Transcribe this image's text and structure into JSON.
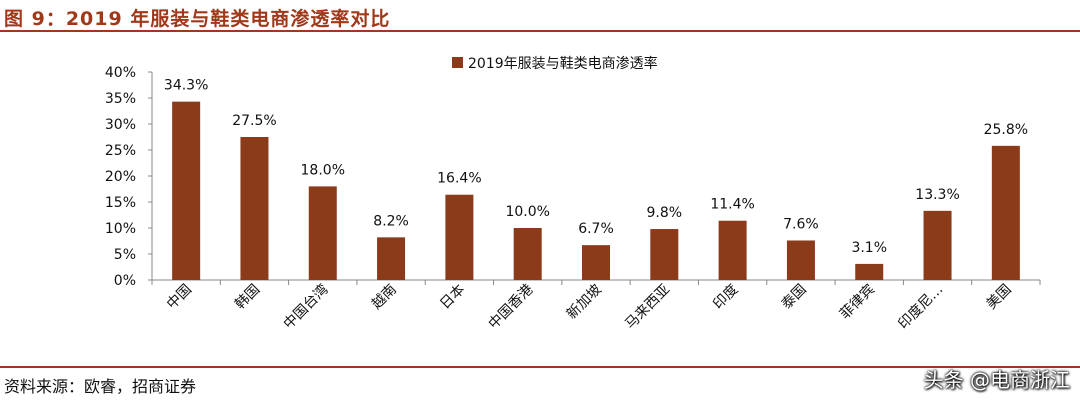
{
  "figure": {
    "title": "图 9：2019 年服装与鞋类电商渗透率对比",
    "source": "资料来源：欧睿，招商证券",
    "watermark": "头条 @电商浙江"
  },
  "chart_data": {
    "type": "bar",
    "categories": [
      "中国",
      "韩国",
      "中国台湾",
      "越南",
      "日本",
      "中国香港",
      "新加坡",
      "马来西亚",
      "印度",
      "泰国",
      "菲律宾",
      "印度尼…",
      "美国"
    ],
    "series": [
      {
        "name": "2019年服装与鞋类电商渗透率",
        "values": [
          34.3,
          27.5,
          18.0,
          8.2,
          16.4,
          10.0,
          6.7,
          9.8,
          11.4,
          7.6,
          3.1,
          13.3,
          25.8
        ],
        "labels": [
          "34.3%",
          "27.5%",
          "18.0%",
          "8.2%",
          "16.4%",
          "10.0%",
          "6.7%",
          "9.8%",
          "11.4%",
          "7.6%",
          "3.1%",
          "13.3%",
          "25.8%"
        ],
        "color": "#8b3a1a"
      }
    ],
    "y_ticks": [
      "0%",
      "5%",
      "10%",
      "15%",
      "20%",
      "25%",
      "30%",
      "35%",
      "40%"
    ],
    "ylim": [
      0,
      40
    ],
    "grid": false,
    "legend_position": "top-center"
  }
}
